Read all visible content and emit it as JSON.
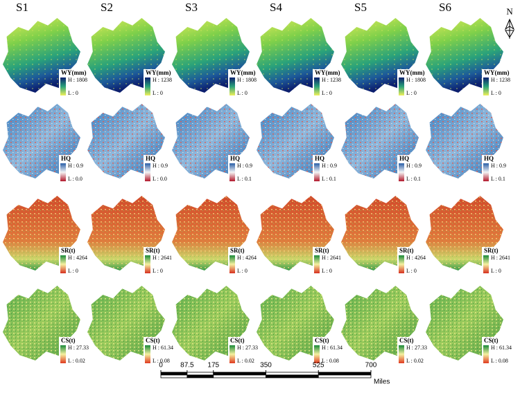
{
  "columns": [
    "S1",
    "S2",
    "S3",
    "S4",
    "S5",
    "S6"
  ],
  "rows": [
    {
      "title": "WY(mm)",
      "panels": [
        {
          "high": "H : 1808",
          "low": "L : 0"
        },
        {
          "high": "H : 1238",
          "low": "L : 0"
        },
        {
          "high": "H : 1808",
          "low": "L : 0"
        },
        {
          "high": "H : 1238",
          "low": "L : 0"
        },
        {
          "high": "H : 1808",
          "low": "L : 0"
        },
        {
          "high": "H : 1238",
          "low": "L : 0"
        }
      ]
    },
    {
      "title": "HQ",
      "panels": [
        {
          "high": "H : 0.9",
          "low": "L : 0.0"
        },
        {
          "high": "H : 0.9",
          "low": "L : 0.0"
        },
        {
          "high": "H : 0.9",
          "low": "L : 0.1"
        },
        {
          "high": "H : 0.9",
          "low": "L : 0.1"
        },
        {
          "high": "H : 0.9",
          "low": "L : 0.1"
        },
        {
          "high": "H : 0.9",
          "low": "L : 0.1"
        }
      ]
    },
    {
      "title": "SR(t)",
      "panels": [
        {
          "high": "H : 4264",
          "low": "L : 0"
        },
        {
          "high": "H : 2641",
          "low": "L : 0"
        },
        {
          "high": "H : 4264",
          "low": "L : 0"
        },
        {
          "high": "H : 2641",
          "low": "L : 0"
        },
        {
          "high": "H : 4264",
          "low": "L : 0"
        },
        {
          "high": "H : 2641",
          "low": "L : 0"
        }
      ]
    },
    {
      "title": "CS(t)",
      "panels": [
        {
          "high": "H : 27.33",
          "low": "L : 0.02"
        },
        {
          "high": "H : 61.34",
          "low": "L : 0.08"
        },
        {
          "high": "H : 27.33",
          "low": "L : 0.02"
        },
        {
          "high": "H : 61.34",
          "low": "L : 0.08"
        },
        {
          "high": "H : 27.33",
          "low": "L : 0.02"
        },
        {
          "high": "H : 61.34",
          "low": "L : 0.08"
        }
      ]
    }
  ],
  "scale_bar": {
    "ticks": [
      0,
      87.5,
      175,
      350,
      525,
      700
    ],
    "unit": "Miles"
  },
  "north": "N"
}
